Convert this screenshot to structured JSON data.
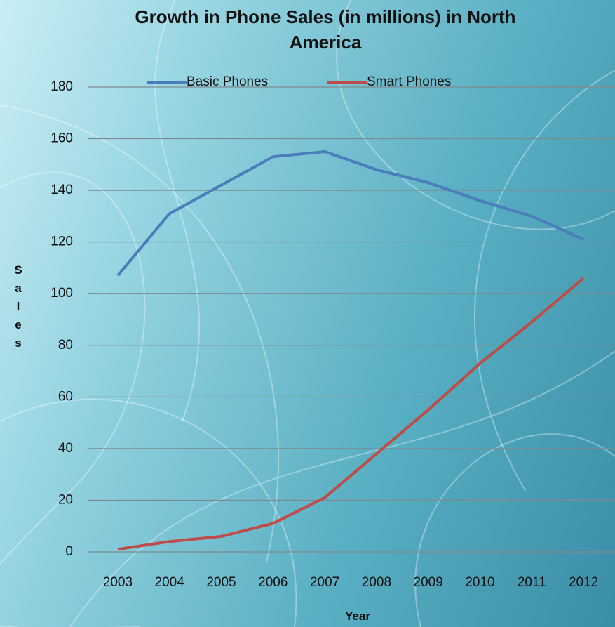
{
  "chart_data": {
    "type": "line",
    "title": "Growth in Phone Sales (in millions) in North America",
    "x_label": "Year",
    "y_label": "Sales",
    "categories": [
      "2003",
      "2004",
      "2005",
      "2006",
      "2007",
      "2008",
      "2009",
      "2010",
      "2011",
      "2012"
    ],
    "series": [
      {
        "name": "Basic Phones",
        "color": "#4a7ebb",
        "values": [
          107,
          131,
          142,
          153,
          155,
          148,
          143,
          136,
          130,
          121
        ]
      },
      {
        "name": "Smart Phones",
        "color": "#be4b48",
        "values": [
          1,
          4,
          6,
          11,
          21,
          38,
          55,
          73,
          89,
          106
        ]
      }
    ],
    "ylim": [
      0,
      180
    ],
    "yticks": [
      0,
      20,
      40,
      60,
      80,
      100,
      120,
      140,
      160,
      180
    ],
    "grid": true,
    "legend": "top"
  }
}
